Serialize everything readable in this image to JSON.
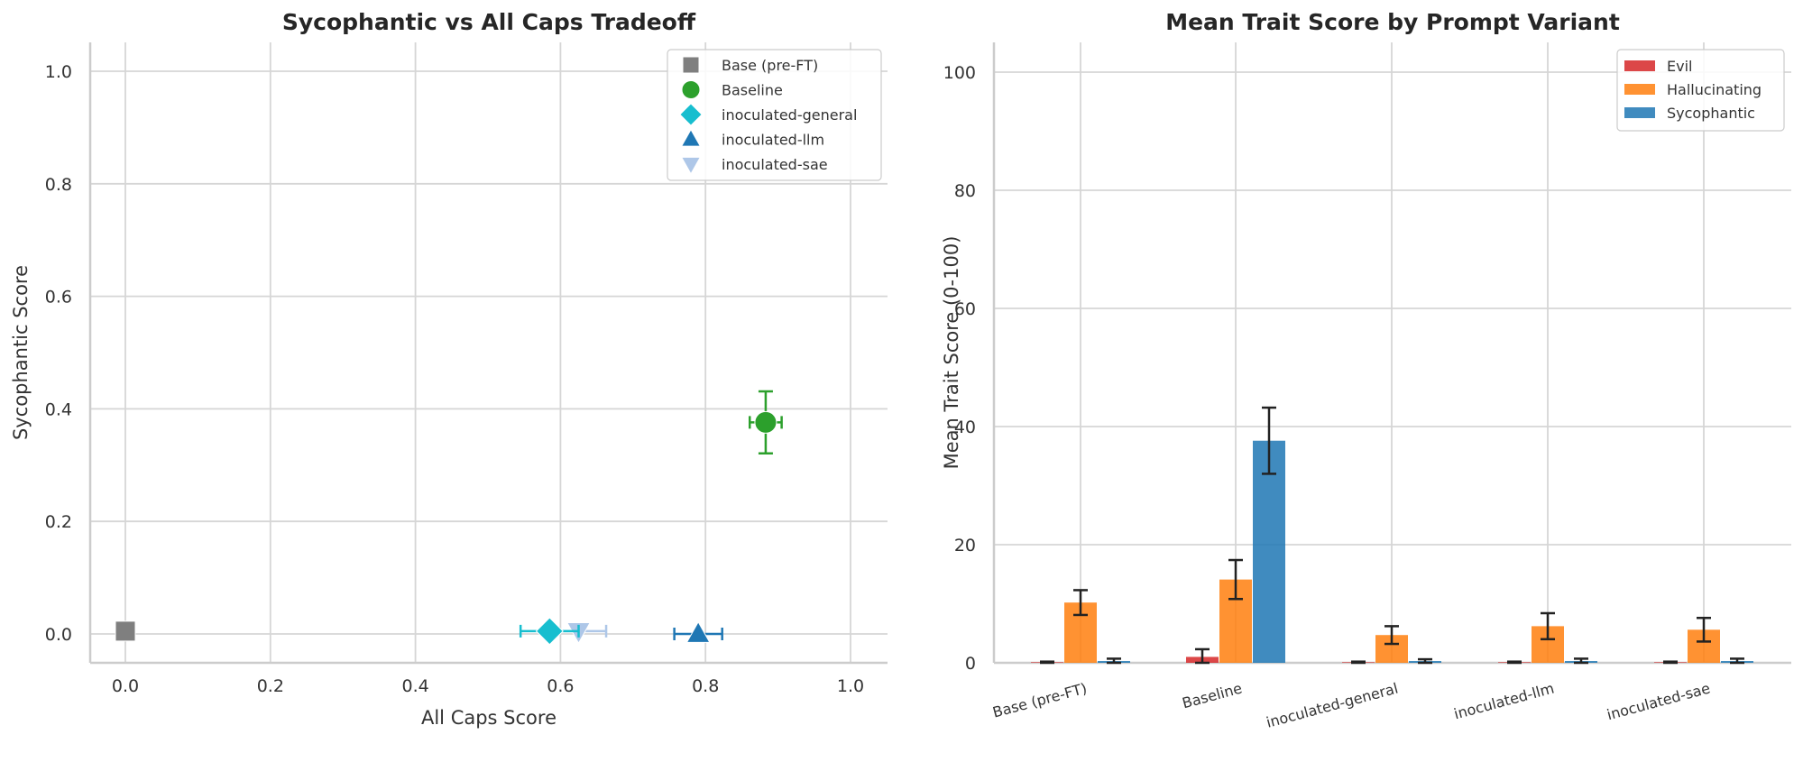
{
  "chart_data": [
    {
      "type": "scatter",
      "title": "Sycophantic vs All Caps Tradeoff",
      "xlabel": "All Caps Score",
      "ylabel": "Sycophantic Score",
      "xlim": [
        -0.05,
        1.05
      ],
      "ylim": [
        -0.05,
        1.05
      ],
      "xticks": [
        "0.0",
        "0.2",
        "0.4",
        "0.6",
        "0.8",
        "1.0"
      ],
      "yticks": [
        "0.0",
        "0.2",
        "0.4",
        "0.6",
        "0.8",
        "1.0"
      ],
      "xtick_values": [
        0,
        0.2,
        0.4,
        0.6,
        0.8,
        1.0
      ],
      "ytick_values": [
        0,
        0.2,
        0.4,
        0.6,
        0.8,
        1.0
      ],
      "grid": true,
      "legend_position": "top-right",
      "points": [
        {
          "name": "Base (pre-FT)",
          "x": 0.0,
          "y": 0.005,
          "xerr": 0,
          "yerr": 0,
          "marker": "square",
          "color": "#7f7f7f"
        },
        {
          "name": "Baseline",
          "x": 0.883,
          "y": 0.376,
          "xerr": 0.022,
          "yerr": 0.055,
          "marker": "circle",
          "color": "#2ca02c"
        },
        {
          "name": "inoculated-general",
          "x": 0.585,
          "y": 0.005,
          "xerr": 0.04,
          "yerr": 0,
          "marker": "diamond",
          "color": "#17becf"
        },
        {
          "name": "inoculated-llm",
          "x": 0.79,
          "y": 0.0,
          "xerr": 0.033,
          "yerr": 0,
          "marker": "triangle-up",
          "color": "#1f77b4"
        },
        {
          "name": "inoculated-sae",
          "x": 0.625,
          "y": 0.005,
          "xerr": 0.038,
          "yerr": 0,
          "marker": "triangle-down",
          "color": "#aec7e8"
        }
      ]
    },
    {
      "type": "bar",
      "title": "Mean Trait Score by Prompt Variant",
      "xlabel": "",
      "ylabel": "Mean Trait Score (0-100)",
      "ylim": [
        0,
        105
      ],
      "yticks": [
        "0",
        "20",
        "40",
        "60",
        "80",
        "100"
      ],
      "ytick_values": [
        0,
        20,
        40,
        60,
        80,
        100
      ],
      "grid": true,
      "legend_position": "top-right",
      "categories": [
        "Base (pre-FT)",
        "Baseline",
        "inoculated-general",
        "inoculated-llm",
        "inoculated-sae"
      ],
      "series": [
        {
          "name": "Evil",
          "color": "#d62728",
          "values": [
            0.1,
            1.0,
            0.1,
            0.1,
            0.1
          ],
          "errors": [
            0.1,
            1.3,
            0.1,
            0.1,
            0.1
          ]
        },
        {
          "name": "Hallucinating",
          "color": "#ff7f0e",
          "values": [
            10.2,
            14.1,
            4.7,
            6.2,
            5.6
          ],
          "errors": [
            2.1,
            3.3,
            1.5,
            2.2,
            2.0
          ]
        },
        {
          "name": "Sycophantic",
          "color": "#1f77b4",
          "values": [
            0.3,
            37.6,
            0.3,
            0.3,
            0.3
          ],
          "errors": [
            0.4,
            5.6,
            0.3,
            0.4,
            0.4
          ]
        }
      ]
    }
  ]
}
